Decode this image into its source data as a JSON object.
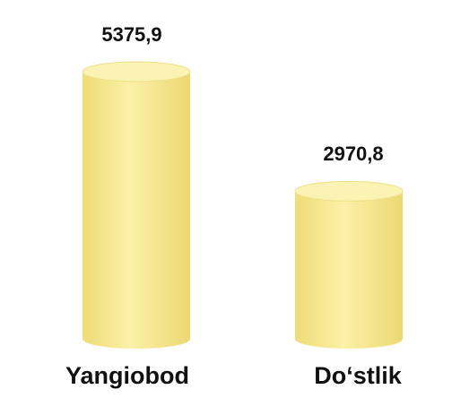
{
  "chart_data": {
    "type": "bar",
    "categories": [
      "Yangiobod",
      "Do‘stlik"
    ],
    "values": [
      5375.9,
      2970.8
    ],
    "value_labels": [
      "5375,9",
      "2970,8"
    ],
    "color": "#f6e88e"
  }
}
